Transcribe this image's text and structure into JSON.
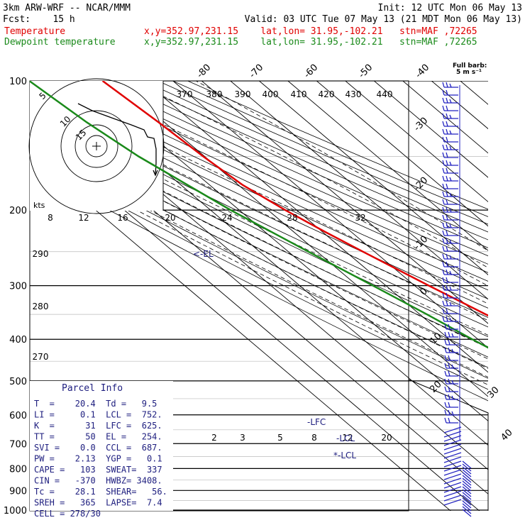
{
  "header": {
    "model": "3km ARW-WRF -- NCAR/MMM",
    "init": "Init: 12 UTC Mon 06 May 13",
    "fcst": "Fcst:    15 h",
    "valid": "Valid: 03 UTC Tue 07 May 13 (21 MDT Mon 06 May 13)",
    "temp_label": "Temperature",
    "temp_info": "x,y=352.97,231.15    lat,lon= 31.95,-102.21   stn=MAF ,72265",
    "dew_label": "Dewpoint temperature",
    "dew_info": "x,y=352.97,231.15    lat,lon= 31.95,-102.21   stn=MAF ,72265",
    "barb_key_1": "Full barb:",
    "barb_key_2": "5 m s⁻¹"
  },
  "colors": {
    "temperature": "#e00000",
    "dewpoint": "#1a8a1a",
    "wind": "#2020c0",
    "info": "#202080"
  },
  "chart_data": {
    "type": "line",
    "title": "",
    "pressure_levels": [
      "100",
      "200",
      "300",
      "400",
      "500",
      "600",
      "700",
      "800",
      "900",
      "1000"
    ],
    "temp_axis_labels": [
      "-80",
      "-70",
      "-60",
      "-50",
      "-40",
      "-30",
      "-20",
      "-10",
      "0",
      "10",
      "20",
      "30",
      "40"
    ],
    "theta_labels": [
      "370",
      "380",
      "390",
      "400",
      "410",
      "420",
      "430",
      "440"
    ],
    "mixing_ratio_labels": [
      "8",
      "12",
      "16",
      "20",
      "24",
      "28",
      "32"
    ],
    "theta_left_labels": [
      "290",
      "280",
      "270"
    ],
    "mixratio_small_labels": [
      "2",
      "3",
      "5",
      "8",
      "12",
      "20"
    ],
    "series": [
      {
        "name": "Temperature",
        "color": "#e00000",
        "points": [
          [
            900,
            20.4
          ],
          [
            850,
            16.5
          ],
          [
            800,
            14.0
          ],
          [
            750,
            11.5
          ],
          [
            700,
            8.5
          ],
          [
            650,
            4.5
          ],
          [
            600,
            0.5
          ],
          [
            550,
            -4.0
          ],
          [
            500,
            -8.5
          ],
          [
            450,
            -14.0
          ],
          [
            400,
            -20.0
          ],
          [
            350,
            -27.0
          ],
          [
            300,
            -35.0
          ],
          [
            250,
            -44.0
          ],
          [
            225,
            -49.0
          ],
          [
            200,
            -54.0
          ],
          [
            175,
            -58.5
          ],
          [
            150,
            -60.5
          ],
          [
            125,
            -62.0
          ],
          [
            100,
            -64.5
          ]
        ]
      },
      {
        "name": "Dewpoint temperature",
        "color": "#1a8a1a",
        "points": [
          [
            900,
            9.5
          ],
          [
            850,
            8.0
          ],
          [
            800,
            6.0
          ],
          [
            750,
            5.5
          ],
          [
            700,
            1.0
          ],
          [
            650,
            -1.0
          ],
          [
            610,
            -6.0
          ],
          [
            550,
            -27.0
          ],
          [
            500,
            -36.0
          ],
          [
            450,
            -36.5
          ],
          [
            400,
            -42.0
          ],
          [
            350,
            -47.5
          ],
          [
            300,
            -54.5
          ],
          [
            250,
            -63.0
          ],
          [
            200,
            -73.0
          ],
          [
            150,
            -83.0
          ],
          [
            125,
            -87.0
          ],
          [
            100,
            -90.0
          ]
        ]
      }
    ],
    "annotations": [
      "<-EL",
      "-LFC",
      "-LCL",
      "*-LCL"
    ],
    "hodograph": {
      "ring_labels": [
        "5",
        "10",
        "15"
      ],
      "axis_label": "kts"
    }
  },
  "parcel_info": {
    "title": "Parcel Info",
    "rows": [
      "T  =    20.4  Td =   9.5",
      "LI =     0.1  LCL =  752.",
      "K  =      31  LFC =  625.",
      "TT =      50  EL =   254.",
      "SVI =    0.0  CCL =  687.",
      "PW =    2.13  YGP =   0.1",
      "CAPE =   103  SWEAT=  337",
      "CIN =   -370  HWBZ= 3408.",
      "Tc =    28.1  SHEAR=   56.",
      "SREH =   365  LAPSE=  7.4",
      "CELL = 278/30"
    ]
  }
}
